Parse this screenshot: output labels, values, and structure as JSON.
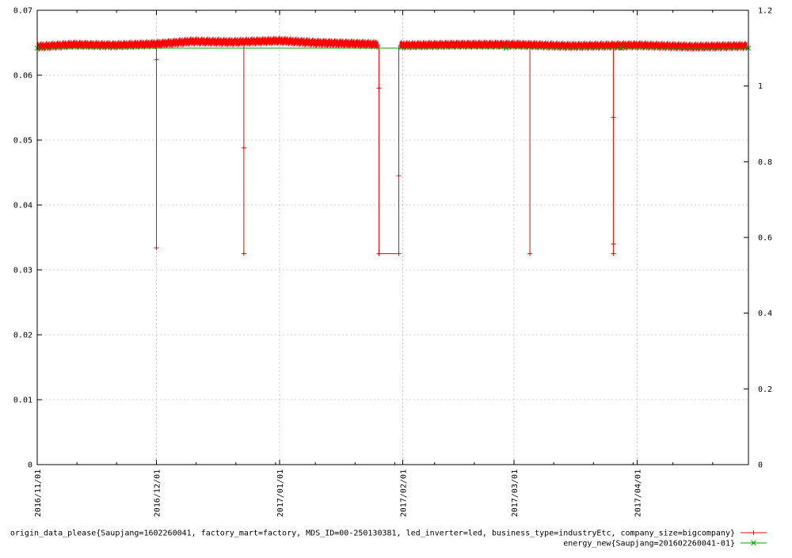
{
  "chart_data": {
    "type": "line",
    "x_axis": {
      "type": "date",
      "range": [
        "2016-11-01",
        "2017-04-29"
      ],
      "tick_labels": [
        "2016/11/01",
        "2016/12/01",
        "2017/01/01",
        "2017/02/01",
        "2017/03/01",
        "2017/04/01"
      ],
      "tick_dates": [
        "2016-11-01",
        "2016-12-01",
        "2017-01-01",
        "2017-02-01",
        "2017-03-01",
        "2017-04-01"
      ],
      "minor_ticks_days": 10,
      "label_rotation": "vertical"
    },
    "y_axis_left": {
      "range": [
        0,
        0.07
      ],
      "tick_labels": [
        "0",
        "0.01",
        "0.02",
        "0.03",
        "0.04",
        "0.05",
        "0.06",
        "0.07"
      ],
      "tick_values": [
        0,
        0.01,
        0.02,
        0.03,
        0.04,
        0.05,
        0.06,
        0.07
      ]
    },
    "y_axis_right": {
      "range": [
        0,
        1.2
      ],
      "tick_labels": [
        "0",
        "0.2",
        "0.4",
        "0.6",
        "0.8",
        "1",
        "1.2"
      ],
      "tick_values": [
        0,
        0.2,
        0.4,
        0.6,
        0.8,
        1.0,
        1.2
      ]
    },
    "grid": true,
    "legend_placement": "bottom-right",
    "series": [
      {
        "name": "origin_data_please{Saupjang=1602260041, factory_mart=factory, MDS_ID=00-250130381, led_inverter=led, business_type=industryEtc, company_size=bigcompany}",
        "axis": "left",
        "color": "#ff0000",
        "marker": "+",
        "baseline_segments": [
          {
            "x": "2016-11-01",
            "y": 0.0644
          },
          {
            "x": "2016-11-10",
            "y": 0.0647
          },
          {
            "x": "2016-11-20",
            "y": 0.0646
          },
          {
            "x": "2016-12-01",
            "y": 0.0648
          },
          {
            "x": "2016-12-10",
            "y": 0.0652
          },
          {
            "x": "2016-12-20",
            "y": 0.0651
          },
          {
            "x": "2017-01-01",
            "y": 0.0653
          },
          {
            "x": "2017-01-10",
            "y": 0.065
          },
          {
            "x": "2017-01-23",
            "y": 0.0648
          },
          {
            "x": "2017-02-01",
            "y": 0.0646
          },
          {
            "x": "2017-02-15",
            "y": 0.0647
          },
          {
            "x": "2017-03-01",
            "y": 0.0647
          },
          {
            "x": "2017-03-15",
            "y": 0.0645
          },
          {
            "x": "2017-04-01",
            "y": 0.0646
          },
          {
            "x": "2017-04-15",
            "y": 0.0644
          },
          {
            "x": "2017-04-29",
            "y": 0.0645
          }
        ],
        "drops": [
          {
            "x": "2016-12-01",
            "y": 0.0334,
            "marks": [
              0.0624,
              0.0334
            ]
          },
          {
            "x": "2016-12-23",
            "y": 0.0325,
            "marks": [
              0.0488,
              0.0325
            ]
          },
          {
            "x": "2017-01-26",
            "y": 0.0325,
            "marks": [
              0.058,
              0.0325
            ]
          },
          {
            "x": "2017-03-05",
            "y": 0.0325,
            "marks": [
              0.0325
            ]
          },
          {
            "x": "2017-03-26",
            "y": 0.0325,
            "marks": [
              0.0535,
              0.034,
              0.0325
            ]
          }
        ],
        "gap": {
          "start": "2017-01-26",
          "end": "2017-01-31",
          "y": 0.0325,
          "marks": [
            "2017-01-26",
            "2017-01-31"
          ],
          "rise": {
            "x": "2017-01-31",
            "marks": [
              0.0445
            ]
          }
        }
      },
      {
        "name": "energy_new{Saupjang=201602260041-01}",
        "axis": "right",
        "color": "#00a000",
        "marker": "x",
        "points": [
          {
            "x": "2016-11-01",
            "y": 1.1
          },
          {
            "x": "2017-02-27",
            "y": 1.1
          },
          {
            "x": "2017-03-28",
            "y": 1.1
          },
          {
            "x": "2017-04-29",
            "y": 1.1
          }
        ]
      }
    ]
  }
}
